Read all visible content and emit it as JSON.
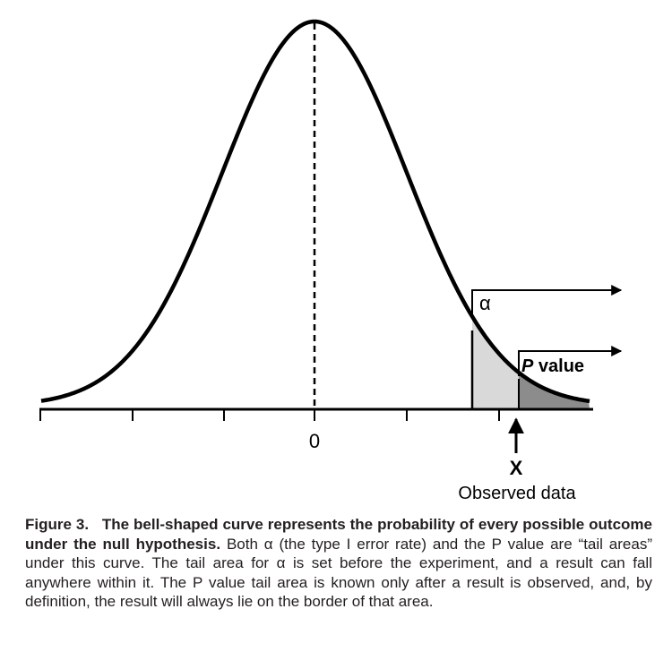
{
  "diagram": {
    "zero_label": "0",
    "alpha_label": "α",
    "p_value_label": "P value",
    "x_label": "X",
    "observed_label": "Observed data"
  },
  "caption": {
    "figure_number": "Figure 3.",
    "lead": "The bell-shaped curve represents the probability of every possible outcome under the null hypothesis.",
    "body": "Both α (the type I error rate) and the P value are “tail areas” under this curve. The tail area for α is set before the experiment, and a result can fall anywhere within it. The P value tail area is known only after a result is observed, and, by definition, the result will always lie on the border of that area."
  }
}
